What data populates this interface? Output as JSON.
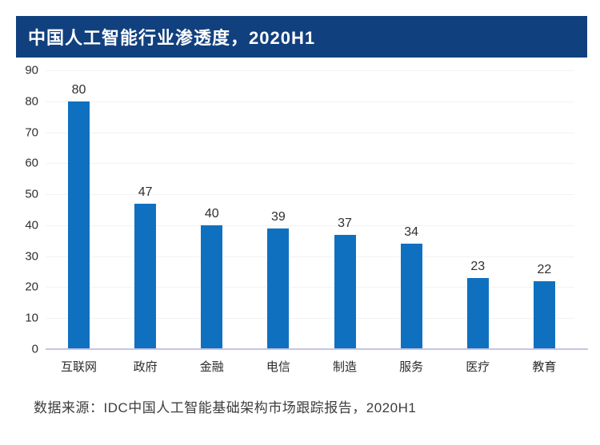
{
  "header": {
    "title": "中国人工智能行业渗透度，2020H1"
  },
  "chart_data": {
    "type": "bar",
    "title": "中国人工智能行业渗透度，2020H1",
    "categories": [
      "互联网",
      "政府",
      "金融",
      "电信",
      "制造",
      "服务",
      "医疗",
      "教育"
    ],
    "values": [
      80,
      47,
      40,
      39,
      37,
      34,
      23,
      22
    ],
    "xlabel": "",
    "ylabel": "",
    "ylim": [
      0,
      90
    ],
    "ytick_step": 10,
    "yticks": [
      0,
      10,
      20,
      30,
      40,
      50,
      60,
      70,
      80,
      90
    ],
    "grid": "horizontal-faint",
    "legend": "none",
    "bar_color": "#1070c0"
  },
  "colors": {
    "banner_bg": "#11407e",
    "bar": "#1070c0",
    "baseline": "#c9c3e6",
    "gridline": "#f3f1f4",
    "title_text": "#ffffff",
    "label_text": "#2f2f2f"
  },
  "footer": {
    "source_text": "数据来源：IDC中国人工智能基础架构市场跟踪报告，2020H1"
  }
}
